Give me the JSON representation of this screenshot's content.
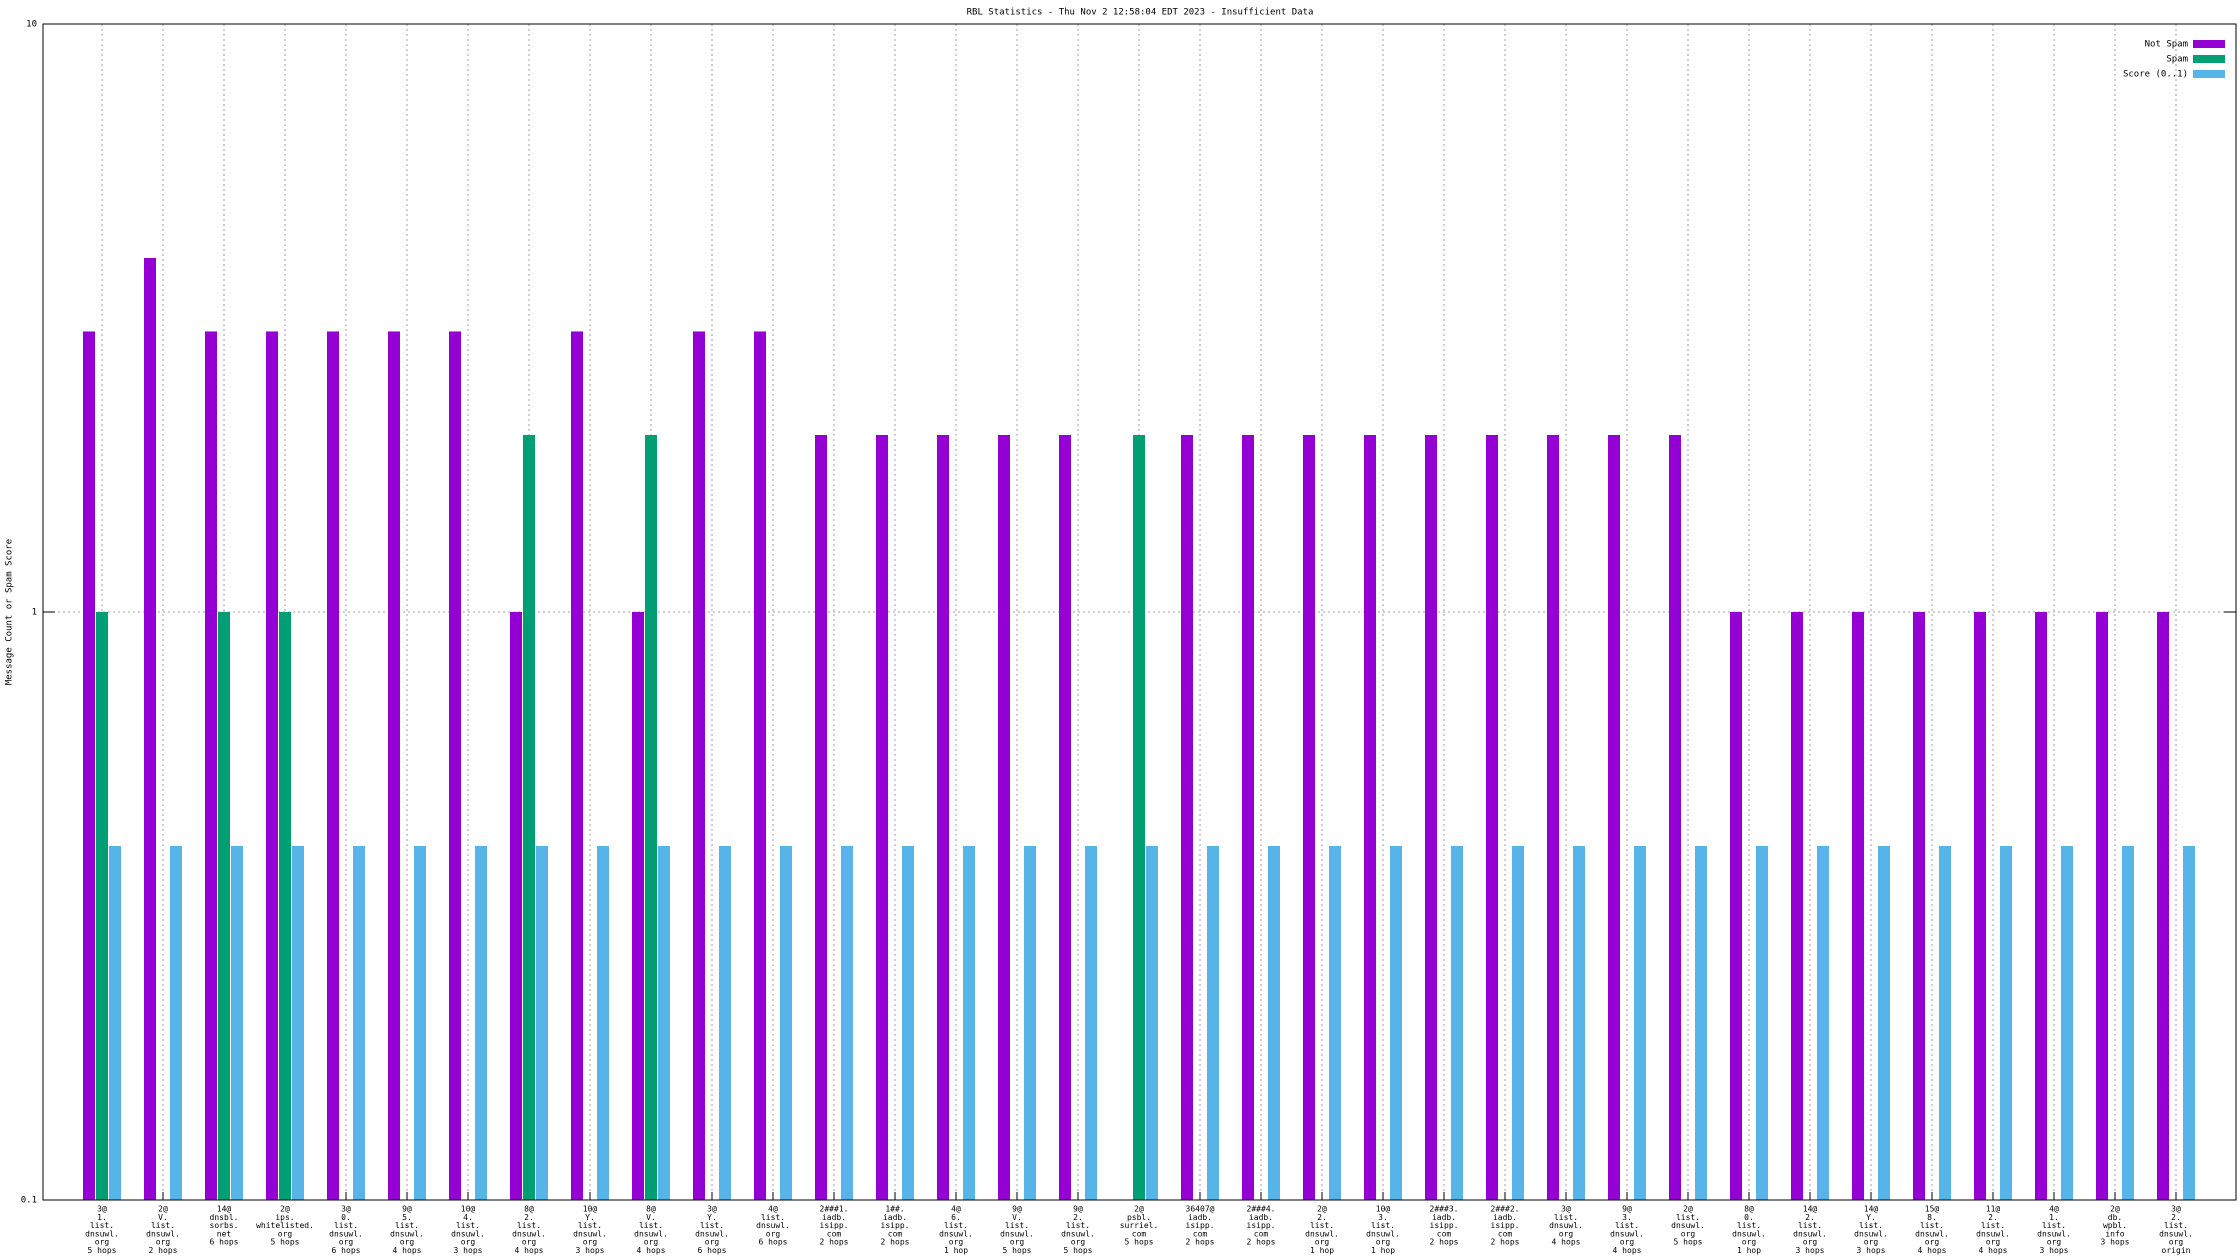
{
  "chart_data": {
    "type": "bar",
    "title": "RBL Statistics - Thu Nov  2 12:58:04 EDT 2023 - Insufficient Data",
    "y_label": "Message Count or Spam Score",
    "log_y": true,
    "grid": true,
    "legend": "top-right",
    "ylim": [
      0.1,
      10
    ],
    "yticks": [
      0.1,
      1,
      10
    ],
    "categories": [
      [
        "3@",
        "1.",
        "list.",
        "dnsuwl.",
        "org",
        "5 hops"
      ],
      [
        "2@",
        "V.",
        "list.",
        "dnsuwl.",
        "org",
        "2 hops"
      ],
      [
        "14@",
        "dnsbl.",
        "sorbs.",
        "net",
        "6 hops"
      ],
      [
        "2@",
        "ips.",
        "whitelisted.",
        "org",
        "5 hops"
      ],
      [
        "3@",
        "0.",
        "list.",
        "dnsuwl.",
        "org",
        "6 hops"
      ],
      [
        "9@",
        "5.",
        "list.",
        "dnsuwl.",
        "org",
        "4 hops"
      ],
      [
        "10@",
        "4.",
        "list.",
        "dnsuwl.",
        "org",
        "3 hops"
      ],
      [
        "8@",
        "2.",
        "list.",
        "dnsuwl.",
        "org",
        "4 hops"
      ],
      [
        "10@",
        "Y.",
        "list.",
        "dnsuwl.",
        "org",
        "3 hops"
      ],
      [
        "8@",
        "V.",
        "list.",
        "dnsuwl.",
        "org",
        "4 hops"
      ],
      [
        "3@",
        "Y.",
        "list.",
        "dnsuwl.",
        "org",
        "6 hops"
      ],
      [
        "4@",
        "list.",
        "dnsuwl.",
        "org",
        "6 hops"
      ],
      [
        "2###1.",
        "iadb.",
        "isipp.",
        "com",
        "2 hops"
      ],
      [
        "1##.",
        "iadb.",
        "isipp.",
        "com",
        "2 hops"
      ],
      [
        "4@",
        "6.",
        "list.",
        "dnsuwl.",
        "org",
        "1 hop"
      ],
      [
        "9@",
        "V.",
        "list.",
        "dnsuwl.",
        "org",
        "5 hops"
      ],
      [
        "9@",
        "2.",
        "list.",
        "dnsuwl.",
        "org",
        "5 hops"
      ],
      [
        "2@",
        "psbl.",
        "surriel.",
        "com",
        "5 hops"
      ],
      [
        "36407@",
        "iadb.",
        "isipp.",
        "com",
        "2 hops"
      ],
      [
        "2###4.",
        "iadb.",
        "isipp.",
        "com",
        "2 hops"
      ],
      [
        "2@",
        "2.",
        "list.",
        "dnsuwl.",
        "org",
        "1 hop"
      ],
      [
        "10@",
        "3.",
        "list.",
        "dnsuwl.",
        "org",
        "1 hop"
      ],
      [
        "2###3.",
        "iadb.",
        "isipp.",
        "com",
        "2 hops"
      ],
      [
        "2###2.",
        "iadb.",
        "isipp.",
        "com",
        "2 hops"
      ],
      [
        "3@",
        "list.",
        "dnsuwl.",
        "org",
        "4 hops"
      ],
      [
        "9@",
        "3.",
        "list.",
        "dnsuwl.",
        "org",
        "4 hops"
      ],
      [
        "2@",
        "list.",
        "dnsuwl.",
        "org",
        "5 hops"
      ],
      [
        "8@",
        "0.",
        "list.",
        "dnsuwl.",
        "org",
        "1 hop"
      ],
      [
        "14@",
        "2.",
        "list.",
        "dnsuwl.",
        "org",
        "3 hops"
      ],
      [
        "14@",
        "Y.",
        "list.",
        "dnsuwl.",
        "org",
        "3 hops"
      ],
      [
        "15@",
        "8.",
        "list.",
        "dnsuwl.",
        "org",
        "4 hops"
      ],
      [
        "11@",
        "2.",
        "list.",
        "dnsuwl.",
        "org",
        "4 hops"
      ],
      [
        "4@",
        "1.",
        "list.",
        "dnsuwl.",
        "org",
        "3 hops"
      ],
      [
        "2@",
        "db.",
        "wpbl.",
        "info",
        "3 hops"
      ],
      [
        "3@",
        "2.",
        "list.",
        "dnsuwl.",
        "org",
        "origin"
      ]
    ],
    "series": [
      {
        "name": "Not Spam",
        "color": "#9400d3",
        "values": [
          3,
          4,
          3,
          3,
          3,
          3,
          3,
          1,
          3,
          1,
          3,
          3,
          2,
          2,
          2,
          2,
          2,
          null,
          2,
          2,
          2,
          2,
          2,
          2,
          2,
          2,
          2,
          1,
          1,
          1,
          1,
          1,
          1,
          1,
          1
        ]
      },
      {
        "name": "Spam",
        "color": "#009e73",
        "values": [
          1,
          null,
          1,
          1,
          null,
          null,
          null,
          2,
          null,
          2,
          null,
          null,
          null,
          null,
          null,
          null,
          null,
          2,
          null,
          null,
          null,
          null,
          null,
          null,
          null,
          null,
          null,
          null,
          null,
          null,
          null,
          null,
          null,
          null,
          null
        ]
      },
      {
        "name": "Score (0..1)",
        "color": "#56b4e9",
        "values": [
          0.4,
          0.4,
          0.4,
          0.4,
          0.4,
          0.4,
          0.4,
          0.4,
          0.4,
          0.4,
          0.4,
          0.4,
          0.4,
          0.4,
          0.4,
          0.4,
          0.4,
          0.4,
          0.4,
          0.4,
          0.4,
          0.4,
          0.4,
          0.4,
          0.4,
          0.4,
          0.4,
          0.4,
          0.4,
          0.4,
          0.4,
          0.4,
          0.4,
          0.4,
          0.4
        ]
      }
    ]
  }
}
